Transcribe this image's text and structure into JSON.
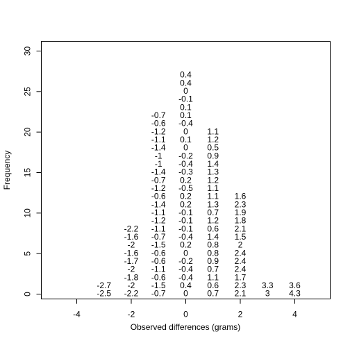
{
  "chart_data": {
    "type": "scatter",
    "xlabel": "Observed differences (grams)",
    "ylabel": "Frequency",
    "xlim": [
      -5.3,
      5.3
    ],
    "ylim": [
      -0.6,
      31.2
    ],
    "x_ticks": [
      -4,
      -2,
      0,
      2,
      4
    ],
    "y_ticks": [
      0,
      5,
      10,
      15,
      20,
      25,
      30
    ],
    "grid": false,
    "legend": "none",
    "stacks": [
      {
        "x": -4,
        "values": []
      },
      {
        "x": -3,
        "values": [
          "-2.5",
          "-2.7"
        ]
      },
      {
        "x": -2,
        "values": [
          "-2.2",
          "-2",
          "-1.8",
          "-2",
          "-1.7",
          "-1.6",
          "-2",
          "-1.6",
          "-2.2"
        ]
      },
      {
        "x": -1,
        "values": [
          "-0.7",
          "-1.5",
          "-0.6",
          "-1.1",
          "-0.6",
          "-0.6",
          "-1.5",
          "-0.7",
          "-1.1",
          "-1.2",
          "-1.1",
          "-1.4",
          "-0.6",
          "-1.2",
          "-0.7",
          "-1.4",
          "-1",
          "-1",
          "-1.4",
          "-1.1",
          "-1.2",
          "-0.6",
          "-0.7"
        ]
      },
      {
        "x": 0,
        "values": [
          "0",
          "0.4",
          "-0.4",
          "-0.4",
          "-0.2",
          "0",
          "0.2",
          "-0.4",
          "-0.1",
          "-0.1",
          "-0.1",
          "0.2",
          "0.2",
          "-0.5",
          "0.2",
          "-0.3",
          "-0.4",
          "-0.2",
          "0",
          "0.1",
          "0",
          "-0.4",
          "0.1",
          "0.1",
          "-0.1",
          "0",
          "0.4",
          "0.4"
        ]
      },
      {
        "x": 1,
        "values": [
          "0.7",
          "0.6",
          "1.1",
          "0.7",
          "0.9",
          "0.8",
          "0.8",
          "1.4",
          "0.6",
          "1.2",
          "0.7",
          "1.3",
          "1.1",
          "1.1",
          "1.2",
          "1.3",
          "1.4",
          "0.9",
          "0.5",
          "1.2",
          "1.1"
        ]
      },
      {
        "x": 2,
        "values": [
          "2.1",
          "2.3",
          "1.7",
          "2.4",
          "2.4",
          "2.4",
          "2",
          "1.5",
          "2.1",
          "1.8",
          "1.9",
          "2.3",
          "1.6"
        ]
      },
      {
        "x": 3,
        "values": [
          "3",
          "3.3"
        ]
      },
      {
        "x": 4,
        "values": [
          "4.3",
          "3.6"
        ]
      }
    ]
  }
}
